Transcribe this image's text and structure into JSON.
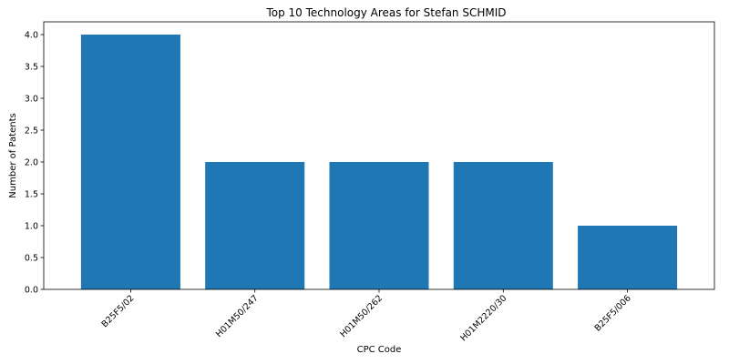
{
  "chart_data": {
    "type": "bar",
    "title": "Top 10 Technology Areas for Stefan SCHMID",
    "xlabel": "CPC Code",
    "ylabel": "Number of Patents",
    "categories": [
      "B25F5/02",
      "H01M50/247",
      "H01M50/262",
      "H01M2220/30",
      "B25F5/006"
    ],
    "values": [
      4,
      2,
      2,
      2,
      1
    ],
    "ylim": [
      0,
      4.2
    ],
    "yticks": [
      "0.0",
      "0.5",
      "1.0",
      "1.5",
      "2.0",
      "2.5",
      "3.0",
      "3.5",
      "4.0"
    ],
    "bar_color": "#1f77b4",
    "grid": false
  }
}
